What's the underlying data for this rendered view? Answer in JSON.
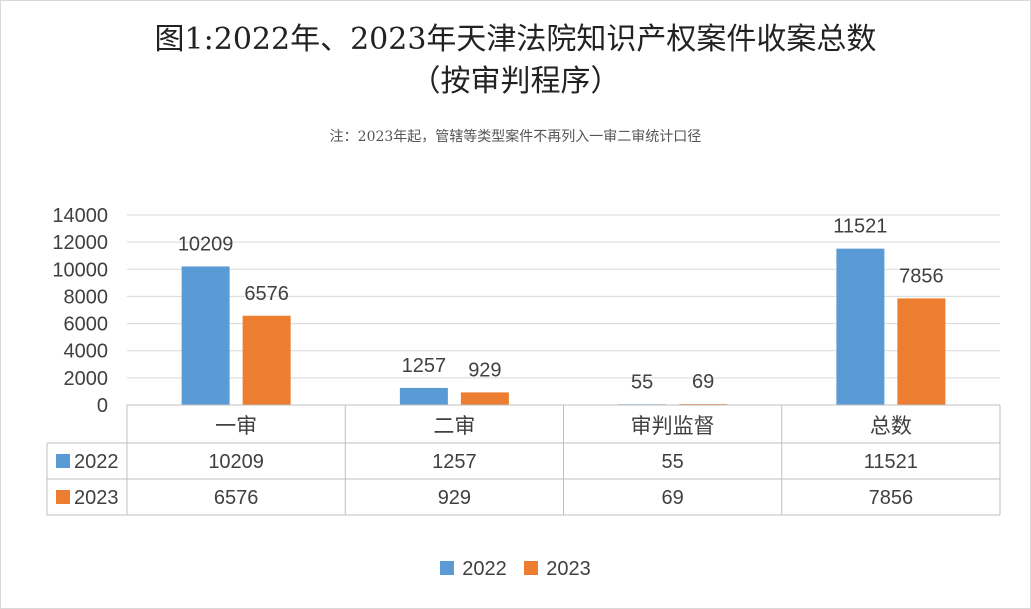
{
  "chart_data": {
    "type": "bar",
    "title": "图1:2022年、2023年天津法院知识产权案件收案总数",
    "subtitle": "（按审判程序）",
    "note": "注：2023年起，管辖等类型案件不再列入一审二审统计口径",
    "categories": [
      "一审",
      "二审",
      "审判监督",
      "总数"
    ],
    "series": [
      {
        "name": "2022",
        "values": [
          10209,
          1257,
          55,
          11521
        ],
        "color": "#5b9bd5"
      },
      {
        "name": "2023",
        "values": [
          6576,
          929,
          69,
          7856
        ],
        "color": "#ed7d31"
      }
    ],
    "yticks": [
      "0",
      "2000",
      "4000",
      "6000",
      "8000",
      "10000",
      "12000",
      "14000"
    ],
    "ylim": [
      0,
      14000
    ],
    "grid": true,
    "data_table": true,
    "legend_position": "bottom"
  }
}
